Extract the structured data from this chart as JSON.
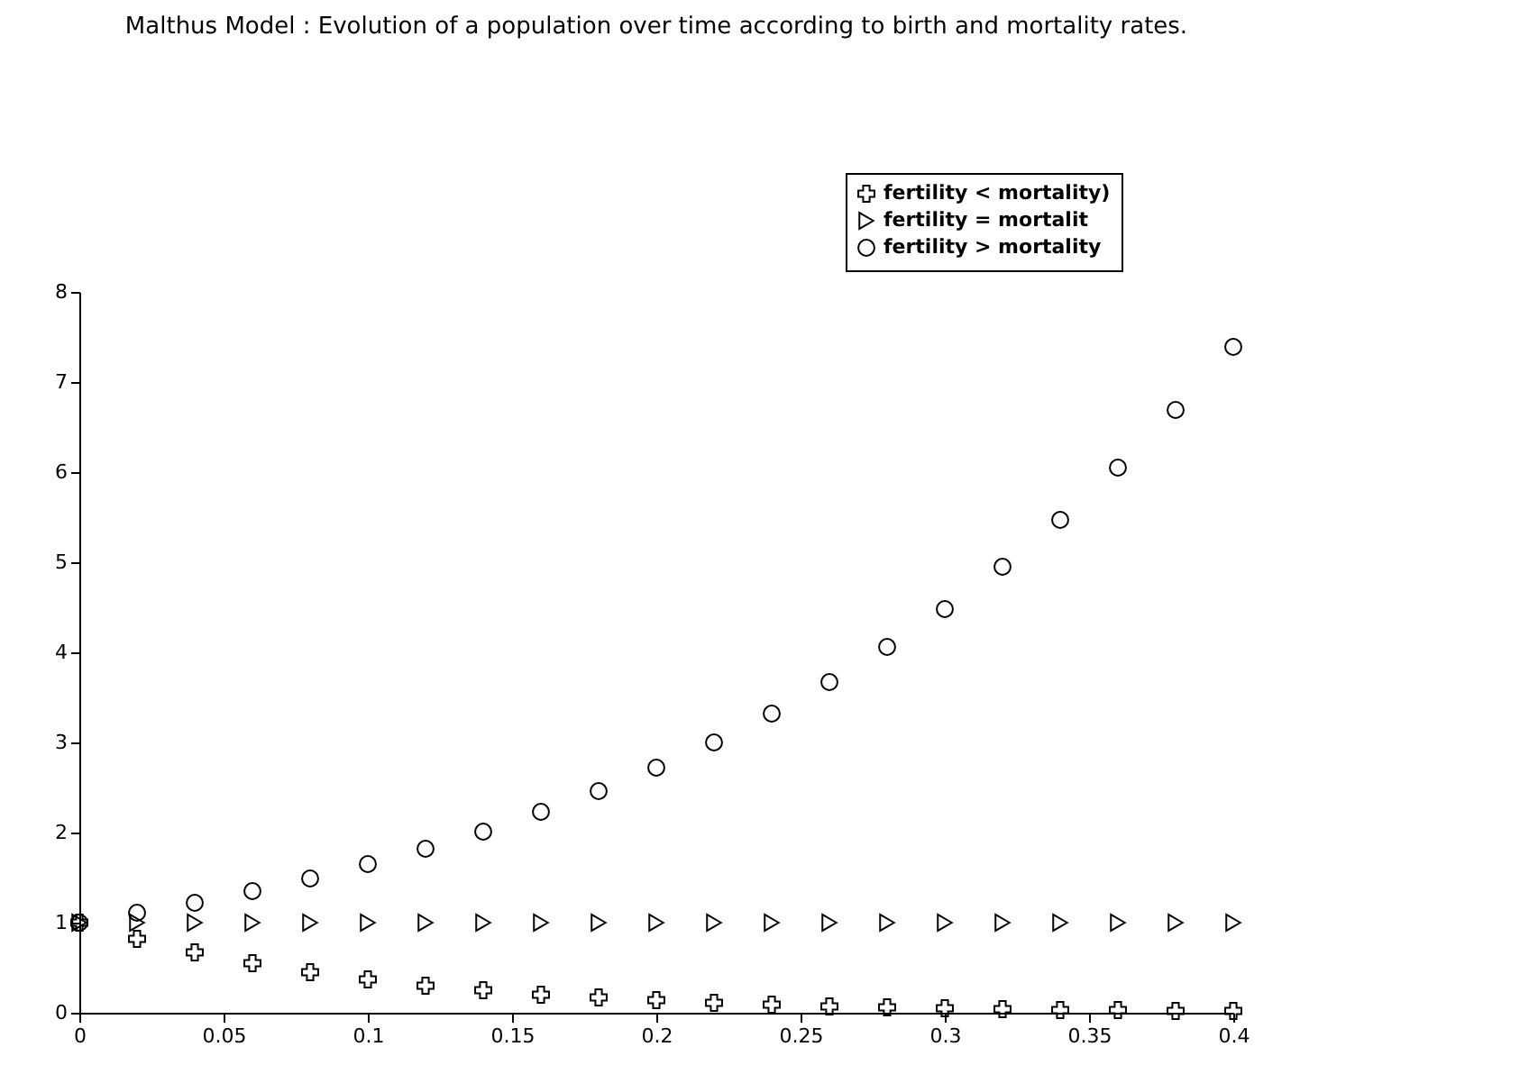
{
  "chart_data": {
    "type": "scatter",
    "title": "Malthus Model : Evolution of a population over time according to birth and mortality rates.",
    "x": [
      0,
      0.02,
      0.04,
      0.06,
      0.08,
      0.1,
      0.12,
      0.14,
      0.16,
      0.18,
      0.2,
      0.22,
      0.24,
      0.26,
      0.28,
      0.3,
      0.32,
      0.34,
      0.36,
      0.38,
      0.4
    ],
    "series": [
      {
        "name": "fertility < mortality)",
        "color": "#000000",
        "marker": "cross",
        "values": [
          1,
          0.82,
          0.67,
          0.55,
          0.45,
          0.37,
          0.3,
          0.25,
          0.2,
          0.17,
          0.14,
          0.11,
          0.09,
          0.07,
          0.06,
          0.05,
          0.04,
          0.03,
          0.03,
          0.02,
          0.02
        ]
      },
      {
        "name": "fertility = mortalit",
        "color": "#000000",
        "marker": "triangle",
        "values": [
          1,
          1,
          1,
          1,
          1,
          1,
          1,
          1,
          1,
          1,
          1,
          1,
          1,
          1,
          1,
          1,
          1,
          1,
          1,
          1,
          1
        ]
      },
      {
        "name": "fertility > mortality",
        "color": "#000000",
        "marker": "circle",
        "values": [
          1,
          1.11,
          1.22,
          1.35,
          1.49,
          1.65,
          1.82,
          2.01,
          2.23,
          2.46,
          2.72,
          3.0,
          3.32,
          3.67,
          4.06,
          4.48,
          4.95,
          5.47,
          6.05,
          6.69,
          7.39
        ]
      }
    ],
    "xlim": [
      0,
      0.4
    ],
    "xticks": [
      0,
      0.05,
      0.1,
      0.15,
      0.2,
      0.25,
      0.3,
      0.35,
      0.4
    ],
    "ylim": [
      0,
      8
    ],
    "yticks": [
      0,
      1,
      2,
      3,
      4,
      5,
      6,
      7,
      8
    ],
    "grid": false,
    "legend": "top right"
  }
}
